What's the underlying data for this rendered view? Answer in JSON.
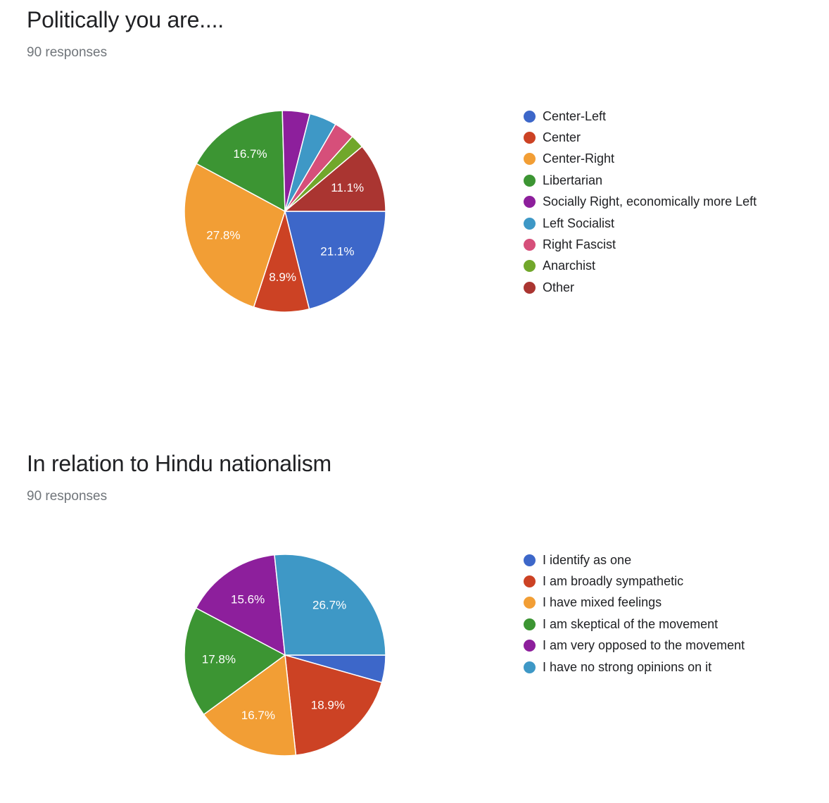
{
  "chart_data": [
    {
      "type": "pie",
      "title": "Politically you are....",
      "subtitle": "90 responses",
      "categories": [
        "Center-Left",
        "Center",
        "Center-Right",
        "Libertarian",
        "Socially Right, economically more Left",
        "Left Socialist",
        "Right Fascist",
        "Anarchist",
        "Other"
      ],
      "values": [
        21.1,
        8.9,
        27.8,
        16.7,
        4.4,
        4.4,
        3.3,
        2.2,
        11.1
      ],
      "data_labels": [
        "21.1%",
        "8.9%",
        "27.8%",
        "16.7%",
        "",
        "",
        "",
        "",
        "11.1%"
      ],
      "colors": [
        "#3d67c9",
        "#cc4224",
        "#f29e35",
        "#3c9533",
        "#8d1f9c",
        "#3e98c6",
        "#d64f7a",
        "#71a72b",
        "#aa3531"
      ],
      "legend_position": "right"
    },
    {
      "type": "pie",
      "title": "In relation to Hindu nationalism",
      "subtitle": "90 responses",
      "categories": [
        "I identify as one",
        "I am broadly sympathetic",
        "I have mixed feelings",
        "I am skeptical of the movement",
        "I am very opposed to the movement",
        "I have no strong opinions on it"
      ],
      "values": [
        4.4,
        18.9,
        16.7,
        17.8,
        15.6,
        26.7
      ],
      "data_labels": [
        "",
        "18.9%",
        "16.7%",
        "17.8%",
        "15.6%",
        "26.7%"
      ],
      "colors": [
        "#3d67c9",
        "#cc4224",
        "#f29e35",
        "#3c9533",
        "#8d1f9c",
        "#3e98c6"
      ],
      "legend_position": "right"
    }
  ]
}
